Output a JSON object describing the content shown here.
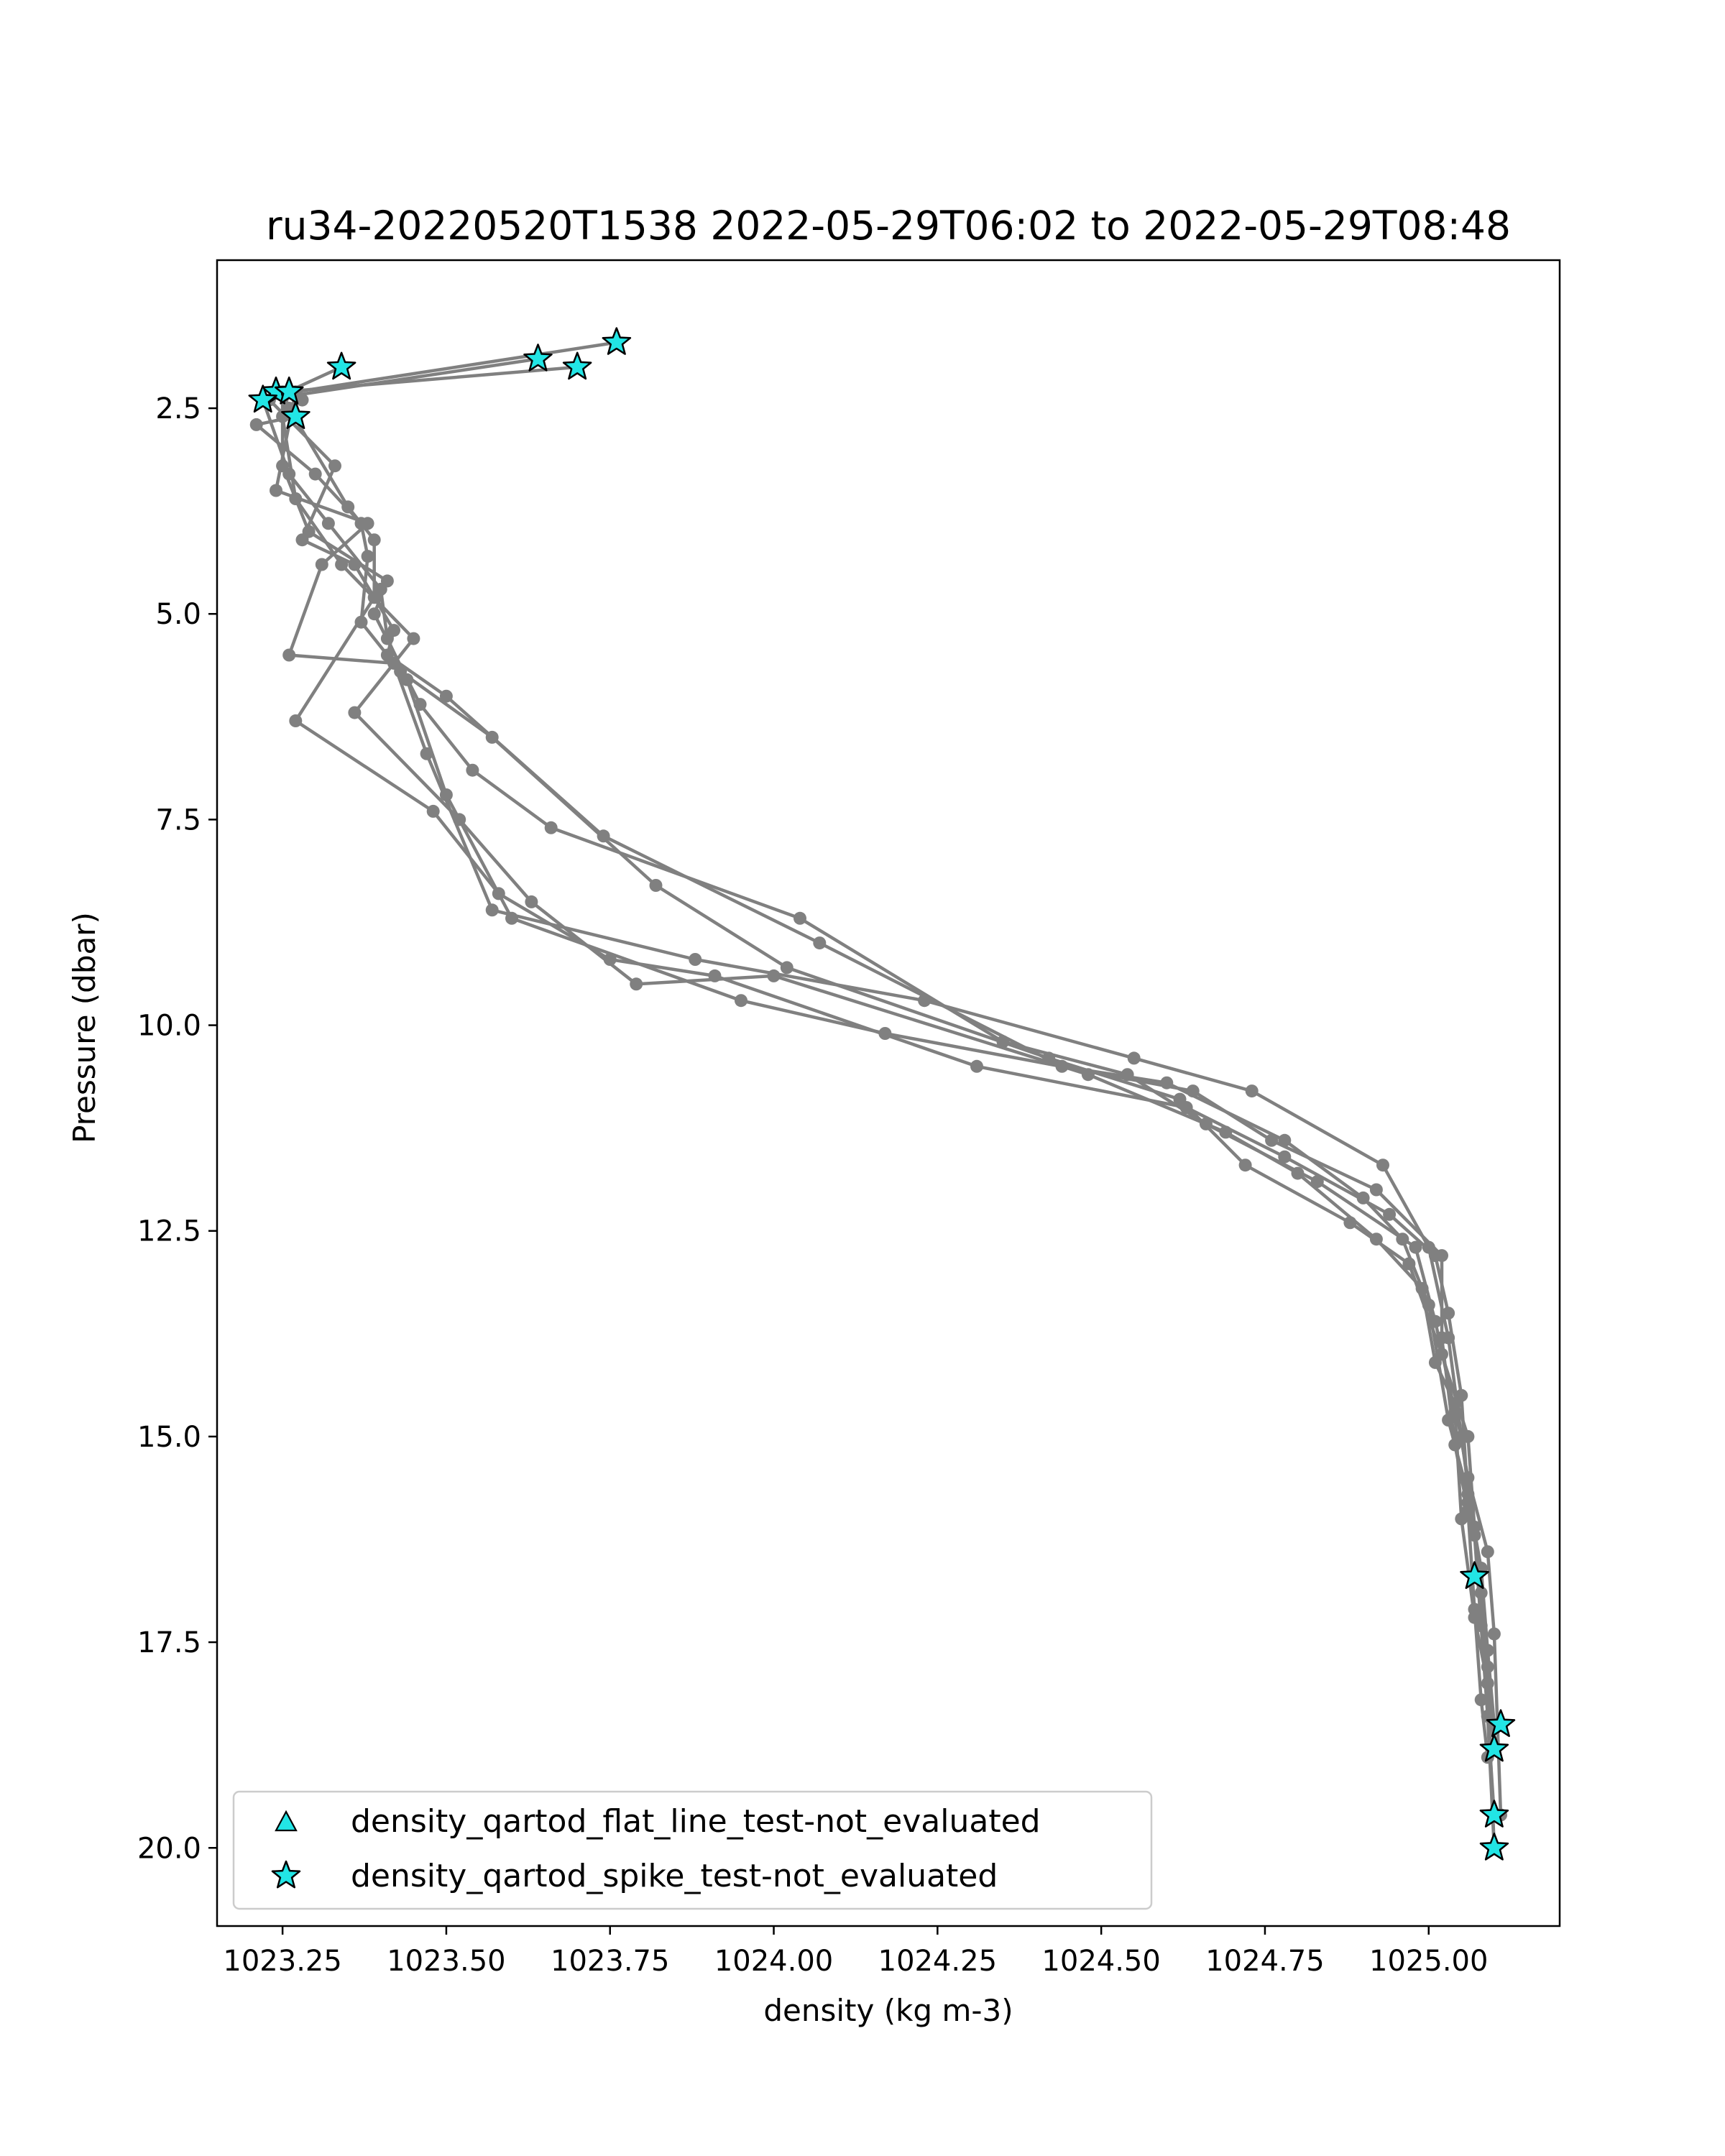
{
  "chart_data": {
    "type": "line",
    "title": "ru34-20220520T1538 2022-05-29T06:02 to 2022-05-29T08:48",
    "xlabel": "density (kg m-3)",
    "ylabel": "Pressure (dbar)",
    "xlim": [
      1023.15,
      1025.2
    ],
    "ylim": [
      20.95,
      0.7
    ],
    "y_inverted": true,
    "grid": false,
    "xticks": [
      1023.25,
      1023.5,
      1023.75,
      1024.0,
      1024.25,
      1024.5,
      1024.75,
      1025.0
    ],
    "xtick_labels": [
      "1023.25",
      "1023.50",
      "1023.75",
      "1024.00",
      "1024.25",
      "1024.50",
      "1024.75",
      "1025.00"
    ],
    "yticks": [
      2.5,
      5.0,
      7.5,
      10.0,
      12.5,
      15.0,
      17.5,
      20.0
    ],
    "ytick_labels": [
      "2.5",
      "5.0",
      "7.5",
      "10.0",
      "12.5",
      "15.0",
      "17.5",
      "20.0"
    ],
    "colors": {
      "profile_line": "#808080",
      "marker_fill": "#22e5e5",
      "marker_edge": "#000000"
    },
    "legend": {
      "position": "lower-left",
      "entries": [
        {
          "label": "density_qartod_flat_line_test-not_evaluated",
          "marker": "triangle"
        },
        {
          "label": "density_qartod_spike_test-not_evaluated",
          "marker": "star"
        }
      ]
    },
    "series": [
      {
        "x": [
          1023.76,
          1023.27,
          1023.24,
          1023.38,
          1023.31,
          1023.26,
          1023.42,
          1023.47,
          1023.57,
          1023.88,
          1024.23,
          1024.55,
          1024.73,
          1024.93,
          1025.0,
          1025.03,
          1025.05,
          1025.07,
          1025.08,
          1025.09,
          1025.1
        ],
        "y": [
          1.7,
          2.3,
          3.5,
          3.9,
          4.4,
          5.5,
          5.6,
          6.7,
          8.6,
          9.2,
          9.7,
          10.4,
          10.8,
          11.7,
          12.7,
          13.8,
          15.0,
          16.2,
          17.3,
          18.4,
          19.6
        ]
      },
      {
        "x": [
          1023.64,
          1023.22,
          1023.26,
          1023.32,
          1023.4,
          1023.41,
          1023.44,
          1023.5,
          1023.6,
          1023.95,
          1024.17,
          1024.64,
          1024.76,
          1024.92,
          1025.02,
          1025.02,
          1025.04,
          1025.06,
          1025.07,
          1025.08,
          1025.09
        ],
        "y": [
          1.9,
          2.4,
          3.3,
          3.9,
          4.7,
          5.3,
          5.8,
          7.2,
          8.7,
          9.7,
          10.1,
          10.8,
          11.4,
          12.0,
          12.8,
          13.8,
          15.1,
          15.9,
          17.1,
          18.2,
          18.9
        ]
      },
      {
        "x": [
          1023.7,
          1023.25,
          1023.25,
          1023.29,
          1023.41,
          1023.39,
          1023.46,
          1023.54,
          1023.66,
          1024.04,
          1024.35,
          1024.54,
          1024.66,
          1024.83,
          1024.98,
          1025.01,
          1025.04,
          1025.05,
          1025.07,
          1025.09,
          1025.1
        ],
        "y": [
          2.0,
          2.3,
          3.2,
          4.0,
          4.6,
          5.0,
          6.1,
          6.9,
          7.6,
          8.7,
          10.2,
          10.6,
          11.2,
          11.9,
          12.7,
          13.6,
          14.7,
          16.0,
          17.2,
          18.0,
          20.0
        ]
      },
      {
        "x": [
          1023.34,
          1023.23,
          1023.33,
          1023.28,
          1023.36,
          1023.42,
          1023.41,
          1023.5,
          1023.74,
          1024.07,
          1024.44,
          1024.6,
          1024.78,
          1024.9,
          1024.96,
          1025.0,
          1025.03,
          1025.06,
          1025.08,
          1025.09,
          1025.1
        ],
        "y": [
          2.0,
          2.4,
          3.2,
          4.1,
          4.4,
          5.2,
          5.5,
          6.0,
          7.7,
          9.0,
          10.5,
          10.7,
          11.4,
          12.1,
          12.6,
          13.4,
          14.8,
          15.7,
          16.6,
          17.6,
          18.5
        ]
      },
      {
        "x": [
          1023.27,
          1023.21,
          1023.3,
          1023.37,
          1023.38,
          1023.37,
          1023.43,
          1023.57,
          1023.82,
          1024.02,
          1024.42,
          1024.62,
          1024.72,
          1024.88,
          1024.97,
          1025.02,
          1025.06,
          1025.07,
          1025.08,
          1025.09,
          1025.1
        ],
        "y": [
          2.6,
          2.7,
          3.3,
          3.9,
          4.3,
          5.1,
          5.7,
          6.5,
          8.3,
          9.3,
          10.4,
          10.9,
          11.7,
          12.4,
          12.9,
          14.0,
          15.0,
          16.1,
          16.9,
          18.4,
          20.0
        ]
      },
      {
        "x": [
          1023.28,
          1023.26,
          1023.35,
          1023.39,
          1023.39,
          1023.27,
          1023.48,
          1023.58,
          1023.75,
          1023.91,
          1024.31,
          1024.63,
          1024.78,
          1024.94,
          1025.01,
          1025.03,
          1025.05,
          1025.06,
          1025.08,
          1025.09,
          1025.1
        ],
        "y": [
          2.4,
          2.5,
          3.7,
          4.1,
          4.8,
          6.3,
          7.4,
          8.4,
          9.2,
          9.4,
          10.5,
          11.0,
          11.6,
          12.3,
          12.8,
          13.5,
          14.5,
          15.8,
          16.6,
          17.8,
          18.8
        ]
      },
      {
        "x": [
          1023.26,
          1023.25,
          1023.27,
          1023.34,
          1023.45,
          1023.36,
          1023.52,
          1023.63,
          1023.79,
          1024.0,
          1024.48,
          1024.69,
          1024.8,
          1024.92,
          1024.99,
          1025.01,
          1025.04,
          1025.06,
          1025.09,
          1025.1,
          1025.11
        ],
        "y": [
          2.3,
          2.6,
          3.6,
          4.4,
          5.3,
          6.2,
          7.5,
          8.5,
          9.5,
          9.4,
          10.6,
          11.3,
          11.8,
          12.6,
          13.2,
          14.1,
          14.6,
          15.5,
          16.4,
          17.4,
          19.6
        ]
      }
    ],
    "flagged_points": [
      {
        "x": 1023.76,
        "y": 1.7,
        "marker": "star"
      },
      {
        "x": 1023.64,
        "y": 1.9,
        "marker": "star"
      },
      {
        "x": 1023.7,
        "y": 2.0,
        "marker": "star"
      },
      {
        "x": 1023.34,
        "y": 2.0,
        "marker": "star"
      },
      {
        "x": 1023.24,
        "y": 2.3,
        "marker": "star"
      },
      {
        "x": 1023.26,
        "y": 2.3,
        "marker": "star"
      },
      {
        "x": 1023.22,
        "y": 2.4,
        "marker": "star"
      },
      {
        "x": 1023.27,
        "y": 2.6,
        "marker": "star"
      },
      {
        "x": 1025.07,
        "y": 16.7,
        "marker": "star"
      },
      {
        "x": 1025.11,
        "y": 18.5,
        "marker": "star"
      },
      {
        "x": 1025.1,
        "y": 18.8,
        "marker": "star"
      },
      {
        "x": 1025.1,
        "y": 19.6,
        "marker": "star"
      },
      {
        "x": 1025.1,
        "y": 20.0,
        "marker": "star"
      }
    ]
  }
}
